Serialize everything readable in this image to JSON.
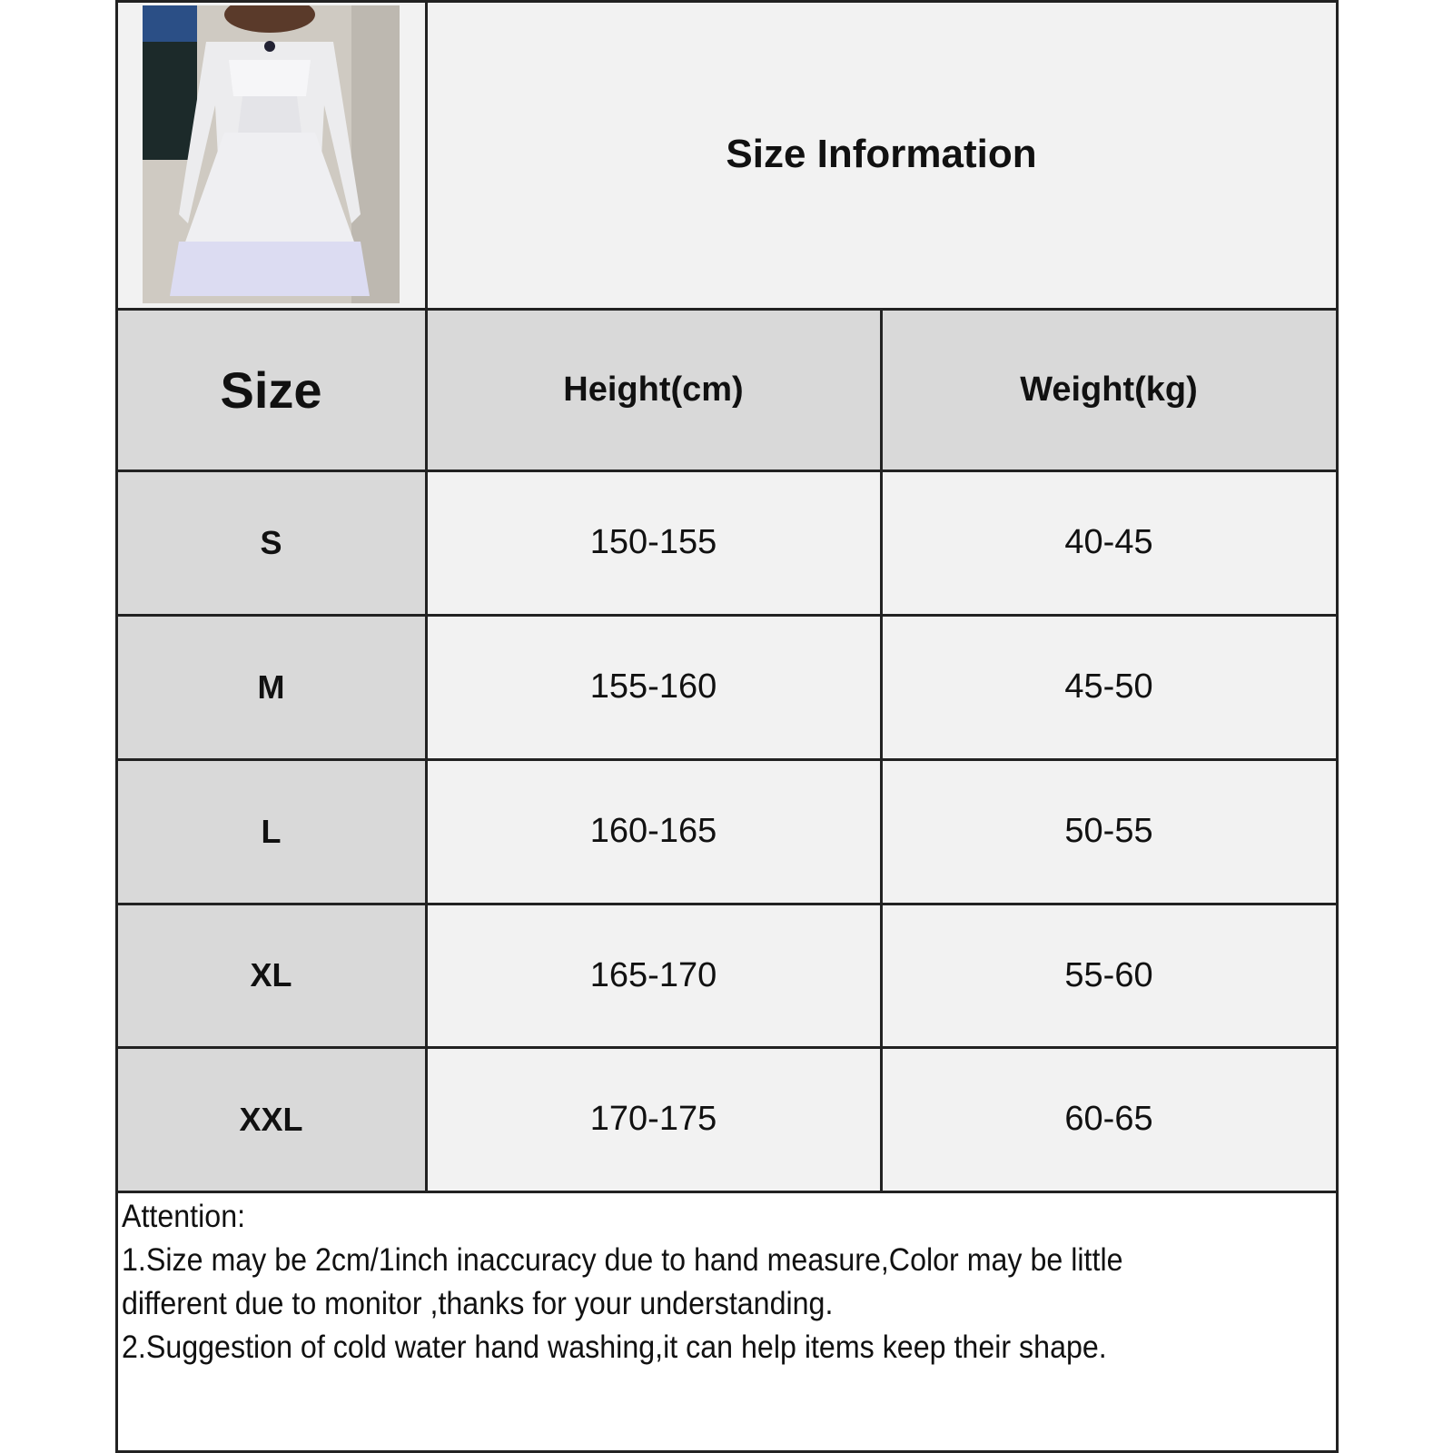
{
  "header": {
    "title": "Size Information"
  },
  "table": {
    "columns": [
      "Size",
      "Height(cm)",
      "Weight(kg)"
    ],
    "rows": [
      {
        "size": "S",
        "height": "150-155",
        "weight": "40-45"
      },
      {
        "size": "M",
        "height": "155-160",
        "weight": "45-50"
      },
      {
        "size": "L",
        "height": "160-165",
        "weight": "50-55"
      },
      {
        "size": "XL",
        "height": "165-170",
        "weight": "55-60"
      },
      {
        "size": "XXL",
        "height": "170-175",
        "weight": "60-65"
      }
    ]
  },
  "notes": {
    "heading": "Attention:",
    "line1a": "1.Size may be 2cm/1inch inaccuracy due to hand measure,Color may be little",
    "line1b": "different due to monitor ,thanks for your understanding.",
    "line2": "2.Suggestion of cold water hand washing,it can help items keep their shape."
  },
  "colors": {
    "header_bg": "#d9d9d9",
    "cell_bg": "#f2f2f2",
    "border": "#222222"
  }
}
